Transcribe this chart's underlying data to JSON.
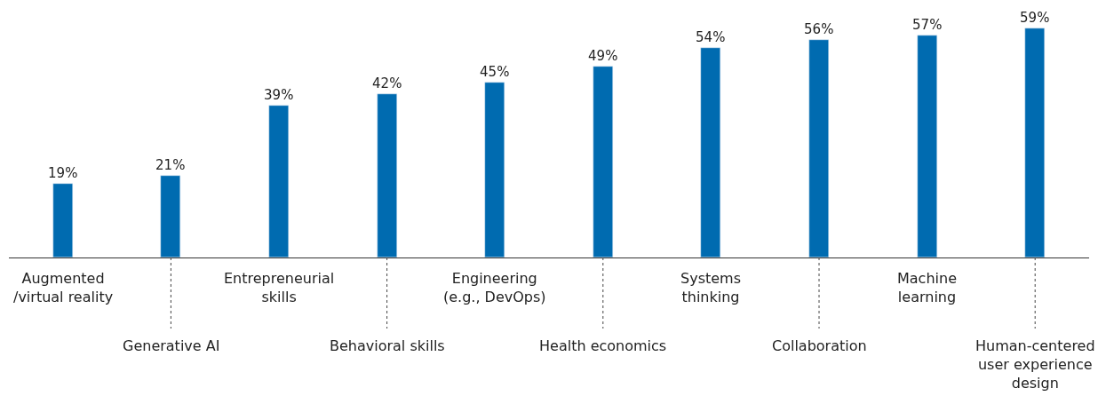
{
  "chart_data": {
    "type": "bar",
    "categories": [
      "Augmented\n/virtual reality",
      "Generative AI",
      "Entrepreneurial\nskills",
      "Behavioral skills",
      "Engineering\n(e.g., DevOps)",
      "Health economics",
      "Systems\nthinking",
      "Collaboration",
      "Machine\nlearning",
      "Human-centered\nuser experience\ndesign"
    ],
    "values": [
      19,
      21,
      39,
      42,
      45,
      49,
      54,
      56,
      57,
      59
    ],
    "color": "#006bb0",
    "value_labels": [
      "19%",
      "21%",
      "39%",
      "42%",
      "45%",
      "49%",
      "54%",
      "56%",
      "57%",
      "59%"
    ]
  }
}
